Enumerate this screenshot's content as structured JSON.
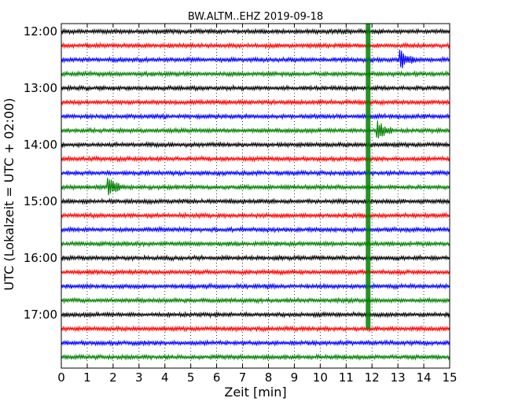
{
  "chart_data": {
    "type": "line",
    "title": "BW.ALTM..EHZ 2019-09-18",
    "xlabel": "Zeit  [min]",
    "ylabel": "UTC (Lokalzeit = UTC + 02:00)",
    "xlim": [
      0,
      15
    ],
    "x_ticks": [
      "0",
      "1",
      "2",
      "3",
      "4",
      "5",
      "6",
      "7",
      "8",
      "9",
      "10",
      "11",
      "12",
      "13",
      "14",
      "15"
    ],
    "y_ticks": [
      "12:00",
      "13:00",
      "14:00",
      "15:00",
      "16:00",
      "17:00"
    ],
    "grid": "vertical dotted",
    "trace_colors": [
      "#000000",
      "#ff0000",
      "#0000ff",
      "#008000"
    ],
    "rows": [
      {
        "start": "12:00",
        "color": "#000000"
      },
      {
        "start": "12:15",
        "color": "#ff0000"
      },
      {
        "start": "12:30",
        "color": "#0000ff"
      },
      {
        "start": "12:45",
        "color": "#008000"
      },
      {
        "start": "13:00",
        "color": "#000000"
      },
      {
        "start": "13:15",
        "color": "#ff0000"
      },
      {
        "start": "13:30",
        "color": "#0000ff"
      },
      {
        "start": "13:45",
        "color": "#008000"
      },
      {
        "start": "14:00",
        "color": "#000000"
      },
      {
        "start": "14:15",
        "color": "#ff0000"
      },
      {
        "start": "14:30",
        "color": "#0000ff"
      },
      {
        "start": "14:45",
        "color": "#008000"
      },
      {
        "start": "15:00",
        "color": "#000000"
      },
      {
        "start": "15:15",
        "color": "#ff0000"
      },
      {
        "start": "15:30",
        "color": "#0000ff"
      },
      {
        "start": "15:45",
        "color": "#008000"
      },
      {
        "start": "16:00",
        "color": "#000000"
      },
      {
        "start": "16:15",
        "color": "#ff0000"
      },
      {
        "start": "16:30",
        "color": "#0000ff"
      },
      {
        "start": "16:45",
        "color": "#008000"
      },
      {
        "start": "17:00",
        "color": "#000000"
      },
      {
        "start": "17:15",
        "color": "#ff0000"
      },
      {
        "start": "17:30",
        "color": "#0000ff"
      },
      {
        "start": "17:45",
        "color": "#008000"
      }
    ],
    "events": [
      {
        "row": 2,
        "minute": 13.1,
        "amplitude": 3.0
      },
      {
        "row": 11,
        "minute": 1.8,
        "amplitude": 4.0
      },
      {
        "row": 7,
        "minute": 12.2,
        "amplitude": 3.5
      }
    ],
    "big_event": {
      "minute": 11.85,
      "from_row": 0,
      "to_row": 21
    }
  }
}
